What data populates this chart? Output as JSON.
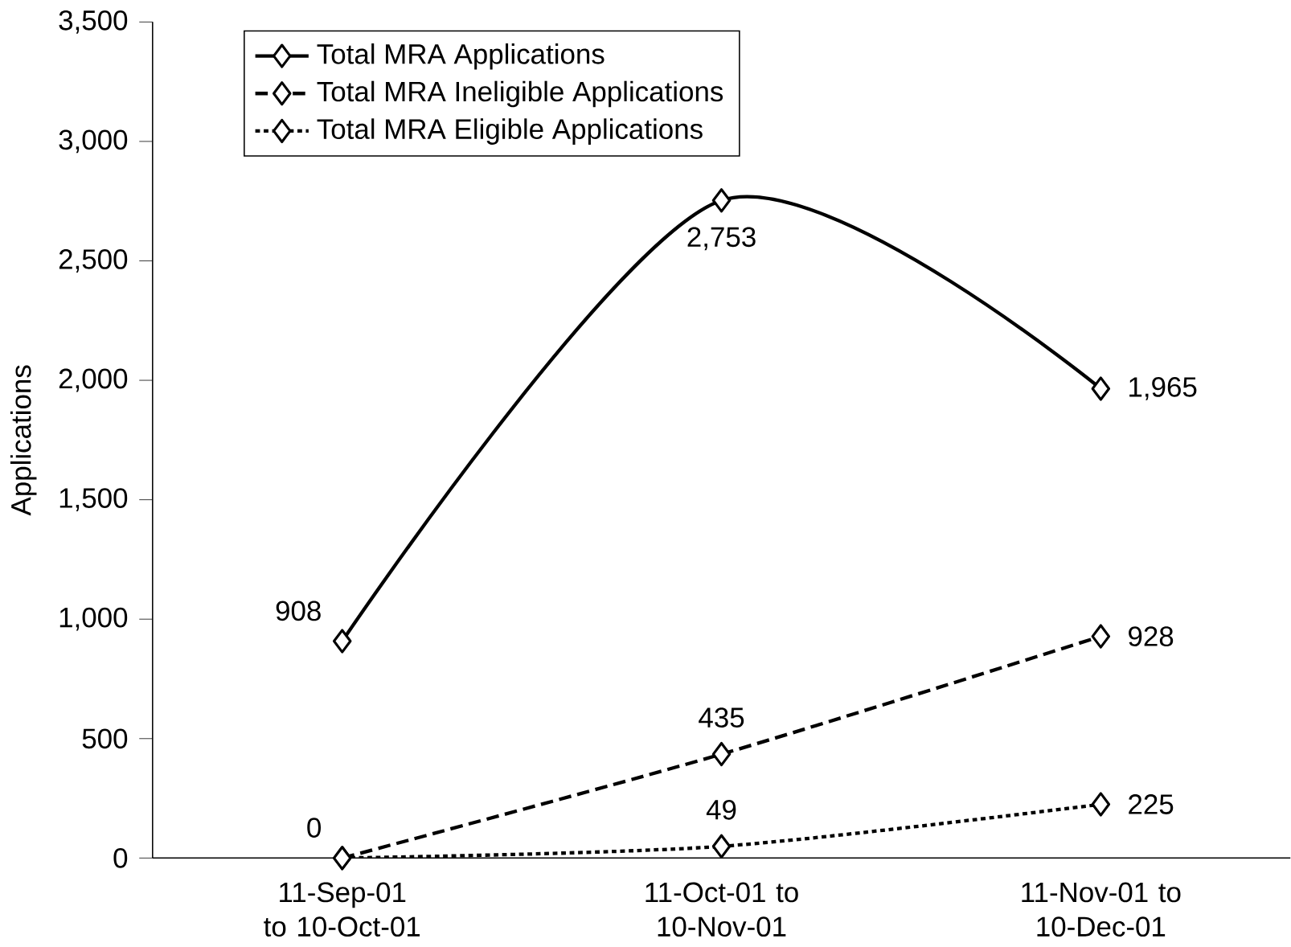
{
  "chart_data": {
    "type": "line",
    "ylabel": "Applications",
    "categories": [
      "11-Sep-01 to 10-Oct-01",
      "11-Oct-01 to 10-Nov-01",
      "11-Nov-01 to 10-Dec-01"
    ],
    "series": [
      {
        "name": "Total MRA Applications",
        "color": "#000000",
        "line_style": "solid",
        "values": [
          908,
          2753,
          1965
        ],
        "value_labels": [
          "908",
          "2,753",
          "1,965"
        ]
      },
      {
        "name": "Total MRA Ineligible Applications",
        "color": "#000000",
        "line_style": "dashed",
        "values": [
          0,
          435,
          928
        ],
        "value_labels": [
          "0",
          "435",
          "928"
        ]
      },
      {
        "name": "Total MRA Eligible Applications",
        "color": "#000000",
        "line_style": "dotted",
        "values": [
          0,
          49,
          225
        ],
        "value_labels": [
          null,
          "49",
          "225"
        ]
      }
    ],
    "ylim": [
      0,
      3500
    ],
    "yticks": [
      {
        "value": 0,
        "label": "0"
      },
      {
        "value": 500,
        "label": "500"
      },
      {
        "value": 1000,
        "label": "1,000"
      },
      {
        "value": 1500,
        "label": "1,500"
      },
      {
        "value": 2000,
        "label": "2,000"
      },
      {
        "value": 2500,
        "label": "2,500"
      },
      {
        "value": 3000,
        "label": "3,000"
      },
      {
        "value": 3500,
        "label": "3,500"
      }
    ],
    "marker": "diamond",
    "legend": "top left",
    "grid": false
  }
}
